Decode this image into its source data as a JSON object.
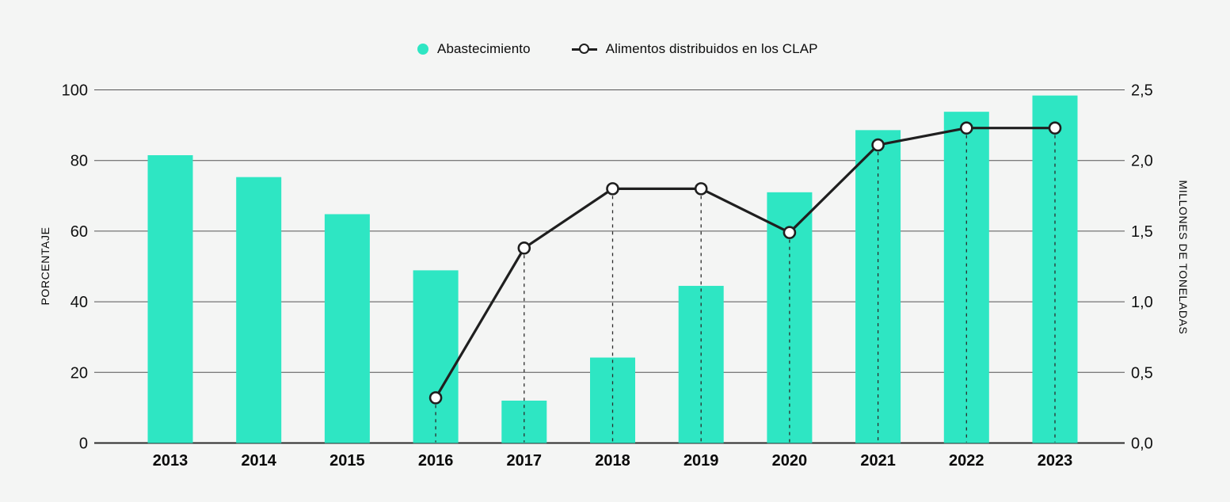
{
  "legend": {
    "series1": "Abastecimiento",
    "series2": "Alimentos distribuidos en los CLAP"
  },
  "colors": {
    "background": "#f4f5f4",
    "bar": "#2ee6c3",
    "line": "#1f1f1f",
    "marker_fill": "#ffffff",
    "grid": "#555555",
    "baseline": "#2b2b2b",
    "dropline": "#2b2b2b",
    "text": "#111111"
  },
  "chart_data": {
    "type": "bar",
    "subtype": "combo-bar-line-dual-axis",
    "categories": [
      "2013",
      "2014",
      "2015",
      "2016",
      "2017",
      "2018",
      "2019",
      "2020",
      "2021",
      "2022",
      "2023"
    ],
    "series": [
      {
        "name": "Abastecimiento",
        "type": "bar",
        "axis": "left",
        "values": [
          81.5,
          75.3,
          64.8,
          48.9,
          12.0,
          24.2,
          44.5,
          71.0,
          88.6,
          93.8,
          98.4
        ]
      },
      {
        "name": "Alimentos distribuidos en los CLAP",
        "type": "line",
        "axis": "right",
        "marker": "open-circle",
        "values": [
          null,
          null,
          null,
          0.32,
          1.38,
          1.8,
          1.8,
          1.49,
          2.11,
          2.23,
          2.23
        ]
      }
    ],
    "left_axis": {
      "title": "PORCENTAJE",
      "range": [
        0,
        100
      ],
      "ticks": [
        0,
        20,
        40,
        60,
        80,
        100
      ],
      "tick_labels": [
        "0",
        "20",
        "40",
        "60",
        "80",
        "100"
      ]
    },
    "right_axis": {
      "title": "MILLONES DE TONELADAS",
      "range": [
        0,
        2.5
      ],
      "tick_values": [
        0,
        0.5,
        1.0,
        1.5,
        2.0,
        2.5
      ],
      "tick_labels": [
        "0,0",
        "0,5",
        "1,0",
        "1,5",
        "2,0",
        "2,5"
      ]
    },
    "grid": true,
    "droplines": true,
    "legend_position": "top-center"
  }
}
